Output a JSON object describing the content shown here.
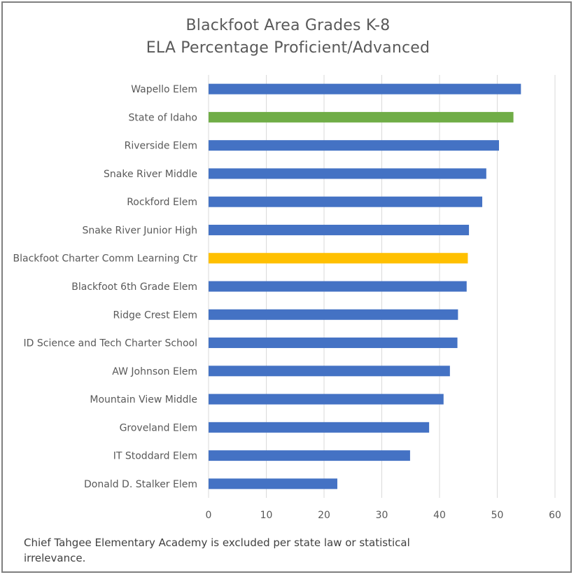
{
  "chart_data": {
    "type": "bar",
    "orientation": "horizontal",
    "title": "Blackfoot Area Grades K-8",
    "subtitle": "ELA Percentage Proficient/Advanced",
    "xlim": [
      0,
      60
    ],
    "xticks": [
      0,
      10,
      20,
      30,
      40,
      50,
      60
    ],
    "grid": true,
    "categories": [
      "Wapello Elem",
      "State of Idaho",
      "Riverside Elem",
      "Snake River Middle",
      "Rockford Elem",
      "Snake River Junior High",
      "Blackfoot Charter Comm Learning Ctr",
      "Blackfoot 6th Grade Elem",
      "Ridge Crest Elem",
      "ID Science and Tech Charter School",
      "AW Johnson Elem",
      "Mountain View Middle",
      "Groveland Elem",
      "IT Stoddard Elem",
      "Donald D. Stalker Elem"
    ],
    "values": [
      54.1,
      52.8,
      50.3,
      48.1,
      47.4,
      45.1,
      44.9,
      44.7,
      43.2,
      43.1,
      41.8,
      40.7,
      38.2,
      34.9,
      22.3
    ],
    "bar_colors": [
      "#4472c4",
      "#70ad47",
      "#4472c4",
      "#4472c4",
      "#4472c4",
      "#4472c4",
      "#ffc000",
      "#4472c4",
      "#4472c4",
      "#4472c4",
      "#4472c4",
      "#4472c4",
      "#4472c4",
      "#4472c4",
      "#4472c4"
    ],
    "footnote": "Chief Tahgee Elementary Academy is excluded per state law or statistical irrelevance."
  }
}
